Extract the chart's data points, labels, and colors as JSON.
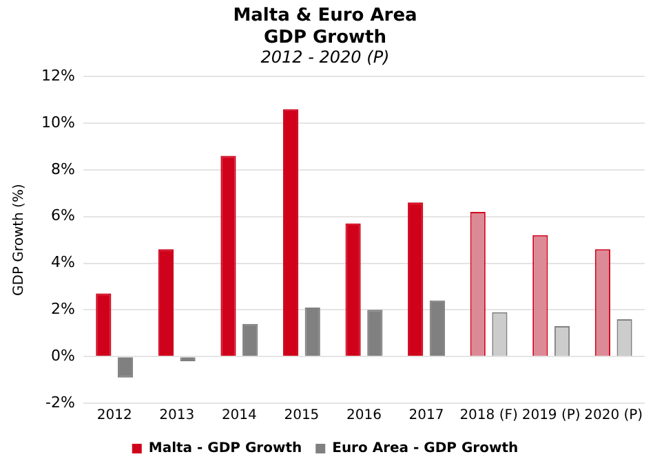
{
  "chart_data": {
    "type": "bar",
    "title": "Malta & Euro Area\nGDP Growth",
    "subtitle": "2012 - 2020 (P)",
    "ylabel": "GDP Growth (%)",
    "categories": [
      "2012",
      "2013",
      "2014",
      "2015",
      "2016",
      "2017",
      "2018 (F)",
      "2019 (P)",
      "2020 (P)"
    ],
    "series": [
      {
        "name": "Malta - GDP Growth",
        "color": "#d0021b",
        "colors": [
          "#d0021b",
          "#d0021b",
          "#d0021b",
          "#d0021b",
          "#d0021b",
          "#d0021b",
          "#dc8a96",
          "#dc8a96",
          "#dc8a96"
        ],
        "values": [
          2.7,
          4.6,
          8.6,
          10.6,
          5.7,
          6.6,
          6.2,
          5.2,
          4.6
        ]
      },
      {
        "name": "Euro Area - GDP Growth",
        "color": "#808080",
        "colors": [
          "#808080",
          "#808080",
          "#808080",
          "#808080",
          "#808080",
          "#808080",
          "#cccccc",
          "#cccccc",
          "#cccccc"
        ],
        "values": [
          -0.9,
          -0.2,
          1.4,
          2.1,
          2.0,
          2.4,
          1.9,
          1.3,
          1.6
        ]
      }
    ],
    "ylim": [
      -2,
      12
    ],
    "yticks": [
      {
        "value": -2,
        "label": "-2%"
      },
      {
        "value": 0,
        "label": "0%"
      },
      {
        "value": 2,
        "label": "2%"
      },
      {
        "value": 4,
        "label": "4%"
      },
      {
        "value": 6,
        "label": "6%"
      },
      {
        "value": 8,
        "label": "8%"
      },
      {
        "value": 10,
        "label": "10%"
      },
      {
        "value": 12,
        "label": "12%"
      }
    ],
    "grid": "y",
    "legend": "bottom"
  }
}
